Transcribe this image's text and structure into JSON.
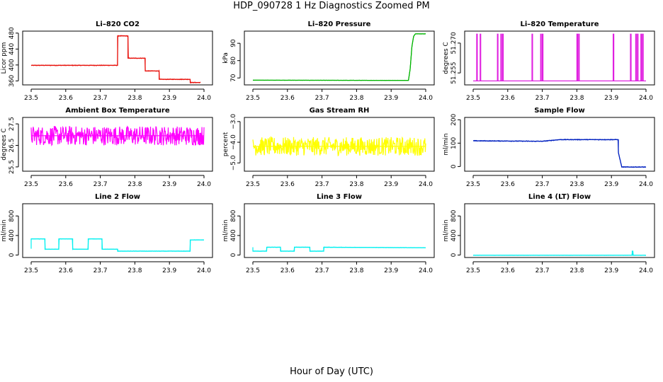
{
  "figure": {
    "title": "HDP_090728  1 Hz Diagnostics Zoomed PM",
    "xlabel": "Hour of Day (UTC)"
  },
  "chart_data": [
    {
      "type": "line",
      "title": "Li–820 CO2",
      "ylabel": "Licor ppm",
      "color": "#e8120c",
      "xlim": [
        23.5,
        24.0
      ],
      "xticks": [
        "23.5",
        "23.6",
        "23.7",
        "23.8",
        "23.9",
        "24.0"
      ],
      "ylim": [
        350,
        485
      ],
      "yticks": [
        "360",
        "400",
        "440",
        "480"
      ],
      "ytickvals": [
        360,
        400,
        440,
        480
      ],
      "noise": 0.8,
      "series": [
        {
          "x": [
            23.5,
            23.75,
            23.75,
            23.78,
            23.78,
            23.83,
            23.83,
            23.87,
            23.87,
            23.96,
            23.96,
            23.99
          ],
          "y": [
            399,
            399,
            473,
            473,
            417,
            417,
            385,
            385,
            364,
            364,
            356,
            356
          ]
        }
      ]
    },
    {
      "type": "line",
      "title": "Li–820 Pressure",
      "ylabel": "kPa",
      "color": "#00b400",
      "xlim": [
        23.5,
        24.0
      ],
      "xticks": [
        "23.5",
        "23.6",
        "23.7",
        "23.8",
        "23.9",
        "24.0"
      ],
      "ylim": [
        66,
        97
      ],
      "yticks": [
        "70",
        "80",
        "90"
      ],
      "ytickvals": [
        70,
        80,
        90
      ],
      "noise": 0.05,
      "series": [
        {
          "x": [
            23.5,
            23.94,
            23.95,
            23.955,
            23.96,
            23.965,
            23.97,
            24.0
          ],
          "y": [
            68.7,
            68.6,
            68.6,
            75,
            88,
            94,
            95.4,
            95.4
          ]
        }
      ]
    },
    {
      "type": "line",
      "title": "Li–820 Temperature",
      "ylabel": "degrees C",
      "color": "#e020e0",
      "xlim": [
        23.5,
        24.0
      ],
      "xticks": [
        "23.5",
        "23.6",
        "23.7",
        "23.8",
        "23.9",
        "24.0"
      ],
      "ylim": [
        51.249,
        51.276
      ],
      "yticks": [
        "51.255",
        "51.270"
      ],
      "ytickvals": [
        51.255,
        51.27
      ],
      "noise": 0,
      "series": [
        {
          "x": [
            23.5,
            23.51,
            23.51,
            23.512,
            23.512,
            23.52,
            23.52,
            23.522,
            23.522,
            23.57,
            23.57,
            23.572,
            23.572,
            23.58,
            23.58,
            23.582,
            23.582,
            23.585,
            23.585,
            23.587,
            23.587,
            23.67,
            23.67,
            23.672,
            23.672,
            23.695,
            23.695,
            23.697,
            23.697,
            23.7,
            23.7,
            23.702,
            23.702,
            23.8,
            23.8,
            23.802,
            23.802,
            23.805,
            23.805,
            23.807,
            23.807,
            23.905,
            23.905,
            23.907,
            23.907,
            23.955,
            23.955,
            23.957,
            23.957,
            23.97,
            23.97,
            23.972,
            23.972,
            23.975,
            23.975,
            23.977,
            23.977,
            23.985,
            23.985,
            23.987,
            23.987,
            23.99,
            23.99,
            23.992,
            23.992,
            24.0
          ],
          "y": [
            51.251,
            51.251,
            51.2745,
            51.2745,
            51.251,
            51.251,
            51.2745,
            51.2745,
            51.251,
            51.251,
            51.2745,
            51.2745,
            51.251,
            51.251,
            51.2745,
            51.2745,
            51.251,
            51.251,
            51.2745,
            51.2745,
            51.251,
            51.251,
            51.2745,
            51.2745,
            51.251,
            51.251,
            51.2745,
            51.2745,
            51.251,
            51.251,
            51.2745,
            51.2745,
            51.251,
            51.251,
            51.2745,
            51.2745,
            51.251,
            51.251,
            51.2745,
            51.2745,
            51.251,
            51.251,
            51.2745,
            51.2745,
            51.251,
            51.251,
            51.2745,
            51.2745,
            51.251,
            51.251,
            51.2745,
            51.2745,
            51.251,
            51.251,
            51.2745,
            51.2745,
            51.251,
            51.251,
            51.2745,
            51.2745,
            51.251,
            51.251,
            51.2745,
            51.2745,
            51.251,
            51.251
          ]
        }
      ]
    },
    {
      "type": "line",
      "title": "Ambient Box Temperature",
      "ylabel": "degrees C",
      "color": "#ff00ff",
      "xlim": [
        23.5,
        24.0
      ],
      "xticks": [
        "23.5",
        "23.6",
        "23.7",
        "23.8",
        "23.9",
        "24.0"
      ],
      "ylim": [
        25.3,
        27.8
      ],
      "yticks": [
        "25.5",
        "26.5",
        "27.5"
      ],
      "ytickvals": [
        25.5,
        26.5,
        27.5
      ],
      "noise": 0.45,
      "series": [
        {
          "x": [
            23.5,
            24.0
          ],
          "y": [
            26.95,
            26.95
          ]
        }
      ]
    },
    {
      "type": "line",
      "title": "Gas Stream RH",
      "ylabel": "percent",
      "color": "#ffff00",
      "xlim": [
        23.5,
        24.0
      ],
      "xticks": [
        "23.5",
        "23.6",
        "23.7",
        "23.8",
        "23.9",
        "24.0"
      ],
      "ylim": [
        -5.4,
        -2.8
      ],
      "yticks": [
        "−5.0",
        "−4.0",
        "−3.0"
      ],
      "ytickvals": [
        -5.0,
        -4.0,
        -3.0
      ],
      "noise": 0.45,
      "series": [
        {
          "x": [
            23.5,
            24.0
          ],
          "y": [
            -4.2,
            -4.2
          ]
        }
      ]
    },
    {
      "type": "line",
      "title": "Sample Flow",
      "ylabel": "ml/min",
      "color": "#0020c0",
      "xlim": [
        23.5,
        24.0
      ],
      "xticks": [
        "23.5",
        "23.6",
        "23.7",
        "23.8",
        "23.9",
        "24.0"
      ],
      "ylim": [
        -20,
        210
      ],
      "yticks": [
        "0",
        "100",
        "200"
      ],
      "ytickvals": [
        0,
        100,
        200
      ],
      "noise": 1.5,
      "series": [
        {
          "x": [
            23.5,
            23.7,
            23.75,
            23.92,
            23.92,
            23.93,
            24.0
          ],
          "y": [
            110,
            108,
            115,
            115,
            60,
            -2,
            -2
          ]
        }
      ]
    },
    {
      "type": "line",
      "title": "Line 2 Flow",
      "ylabel": "ml/min",
      "color": "#00f0f0",
      "xlim": [
        23.5,
        24.0
      ],
      "xticks": [
        "23.5",
        "23.6",
        "23.7",
        "23.8",
        "23.9",
        "24.0"
      ],
      "ylim": [
        -50,
        1050
      ],
      "yticks": [
        "0",
        "400",
        "800"
      ],
      "ytickvals": [
        0,
        400,
        800
      ],
      "noise": 3,
      "series": [
        {
          "x": [
            23.5,
            23.5,
            23.54,
            23.54,
            23.58,
            23.58,
            23.62,
            23.62,
            23.665,
            23.665,
            23.705,
            23.705,
            23.75,
            23.75,
            23.96,
            23.96,
            24.0
          ],
          "y": [
            130,
            330,
            330,
            120,
            120,
            330,
            330,
            120,
            120,
            330,
            330,
            120,
            120,
            80,
            80,
            310,
            310
          ]
        }
      ]
    },
    {
      "type": "line",
      "title": "Line 3 Flow",
      "ylabel": "ml/min",
      "color": "#00f0f0",
      "xlim": [
        23.5,
        24.0
      ],
      "xticks": [
        "23.5",
        "23.6",
        "23.7",
        "23.8",
        "23.9",
        "24.0"
      ],
      "ylim": [
        -50,
        1050
      ],
      "yticks": [
        "0",
        "400",
        "800"
      ],
      "ytickvals": [
        0,
        400,
        800
      ],
      "noise": 3,
      "series": [
        {
          "x": [
            23.5,
            23.5,
            23.54,
            23.54,
            23.58,
            23.58,
            23.62,
            23.62,
            23.665,
            23.665,
            23.705,
            23.705,
            24.0
          ],
          "y": [
            160,
            80,
            80,
            160,
            160,
            80,
            80,
            160,
            160,
            80,
            80,
            160,
            150
          ]
        }
      ]
    },
    {
      "type": "line",
      "title": "Line 4 (LT) Flow",
      "ylabel": "ml/min",
      "color": "#00f0f0",
      "xlim": [
        23.5,
        24.0
      ],
      "xticks": [
        "23.5",
        "23.6",
        "23.7",
        "23.8",
        "23.9",
        "24.0"
      ],
      "ylim": [
        -50,
        1050
      ],
      "yticks": [
        "0",
        "400",
        "800"
      ],
      "ytickvals": [
        0,
        400,
        800
      ],
      "noise": 2,
      "series": [
        {
          "x": [
            23.5,
            23.96,
            23.96,
            23.962,
            23.962,
            24.0
          ],
          "y": [
            -5,
            -5,
            80,
            80,
            -5,
            -5
          ]
        }
      ]
    }
  ]
}
